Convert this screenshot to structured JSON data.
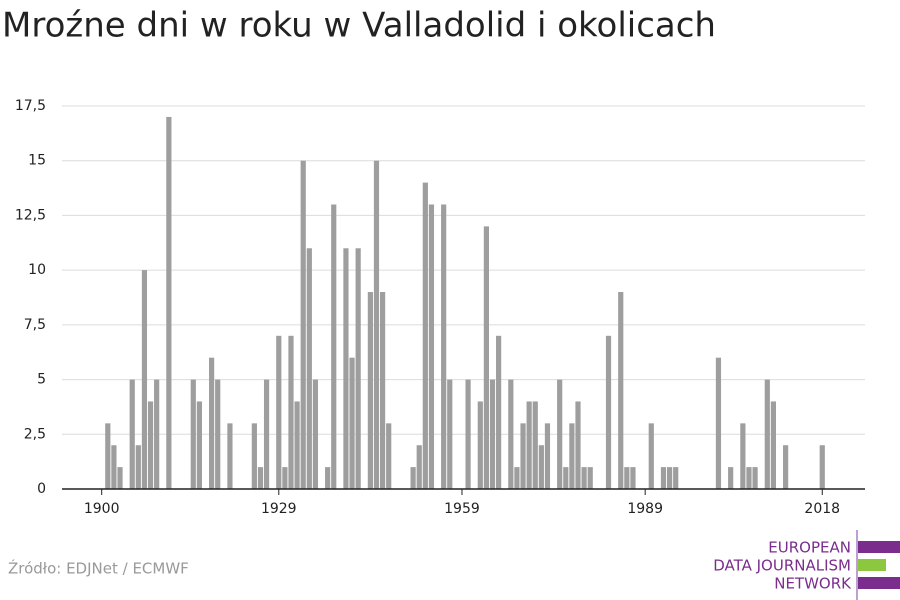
{
  "chart_data": {
    "type": "bar",
    "title": "Mroźne dni w roku w Valladolid i okolicach",
    "x": [
      1900,
      1901,
      1902,
      1903,
      1904,
      1905,
      1906,
      1907,
      1908,
      1909,
      1910,
      1911,
      1912,
      1913,
      1914,
      1915,
      1916,
      1917,
      1918,
      1919,
      1920,
      1921,
      1922,
      1923,
      1924,
      1925,
      1926,
      1927,
      1928,
      1929,
      1930,
      1931,
      1932,
      1933,
      1934,
      1935,
      1936,
      1937,
      1938,
      1939,
      1940,
      1941,
      1942,
      1943,
      1944,
      1945,
      1946,
      1947,
      1948,
      1949,
      1950,
      1951,
      1952,
      1953,
      1954,
      1955,
      1956,
      1957,
      1958,
      1959,
      1960,
      1961,
      1962,
      1963,
      1964,
      1965,
      1966,
      1967,
      1968,
      1969,
      1970,
      1971,
      1972,
      1973,
      1974,
      1975,
      1976,
      1977,
      1978,
      1979,
      1980,
      1981,
      1982,
      1983,
      1984,
      1985,
      1986,
      1987,
      1988,
      1989,
      1990,
      1991,
      1992,
      1993,
      1994,
      1995,
      1996,
      1997,
      1998,
      1999,
      2000,
      2001,
      2002,
      2003,
      2004,
      2005,
      2006,
      2007,
      2008,
      2009,
      2010,
      2011,
      2012,
      2013,
      2014,
      2015,
      2016,
      2017,
      2018,
      2019
    ],
    "values": [
      0,
      3,
      2,
      1,
      0,
      5,
      2,
      10,
      4,
      5,
      0,
      17,
      0,
      0,
      0,
      5,
      4,
      0,
      6,
      5,
      0,
      3,
      0,
      0,
      0,
      3,
      1,
      5,
      0,
      7,
      1,
      7,
      4,
      15,
      11,
      5,
      0,
      1,
      13,
      0,
      11,
      6,
      11,
      0,
      9,
      15,
      9,
      3,
      0,
      0,
      0,
      1,
      2,
      14,
      13,
      0,
      13,
      5,
      0,
      0,
      5,
      0,
      4,
      12,
      5,
      7,
      0,
      5,
      1,
      3,
      4,
      4,
      2,
      3,
      0,
      5,
      1,
      3,
      4,
      1,
      1,
      0,
      0,
      7,
      0,
      9,
      1,
      1,
      0,
      0,
      3,
      0,
      1,
      1,
      1,
      0,
      0,
      0,
      0,
      0,
      0,
      6,
      0,
      1,
      0,
      3,
      1,
      1,
      0,
      5,
      4,
      0,
      2,
      0,
      0,
      0,
      0,
      0,
      2,
      0
    ],
    "color": "#9e9e9e",
    "xlim": [
      1893.5,
      2025
    ],
    "xticks": [
      1900,
      1929,
      1959,
      1989,
      2018
    ],
    "ylim": [
      0,
      17.5
    ],
    "yticks": [
      0,
      {
        "value": 2.5,
        "label": "2,5"
      },
      5,
      {
        "value": 7.5,
        "label": "7,5"
      },
      10,
      {
        "value": 12.5,
        "label": "12,5"
      },
      15,
      {
        "value": 17.5,
        "label": "17,5"
      }
    ],
    "grid": true,
    "source": "Źródło: EDJNet / ECMWF"
  },
  "logo": [
    "EUROPEAN",
    "DATA JOURNALISM",
    "NETWORK"
  ]
}
